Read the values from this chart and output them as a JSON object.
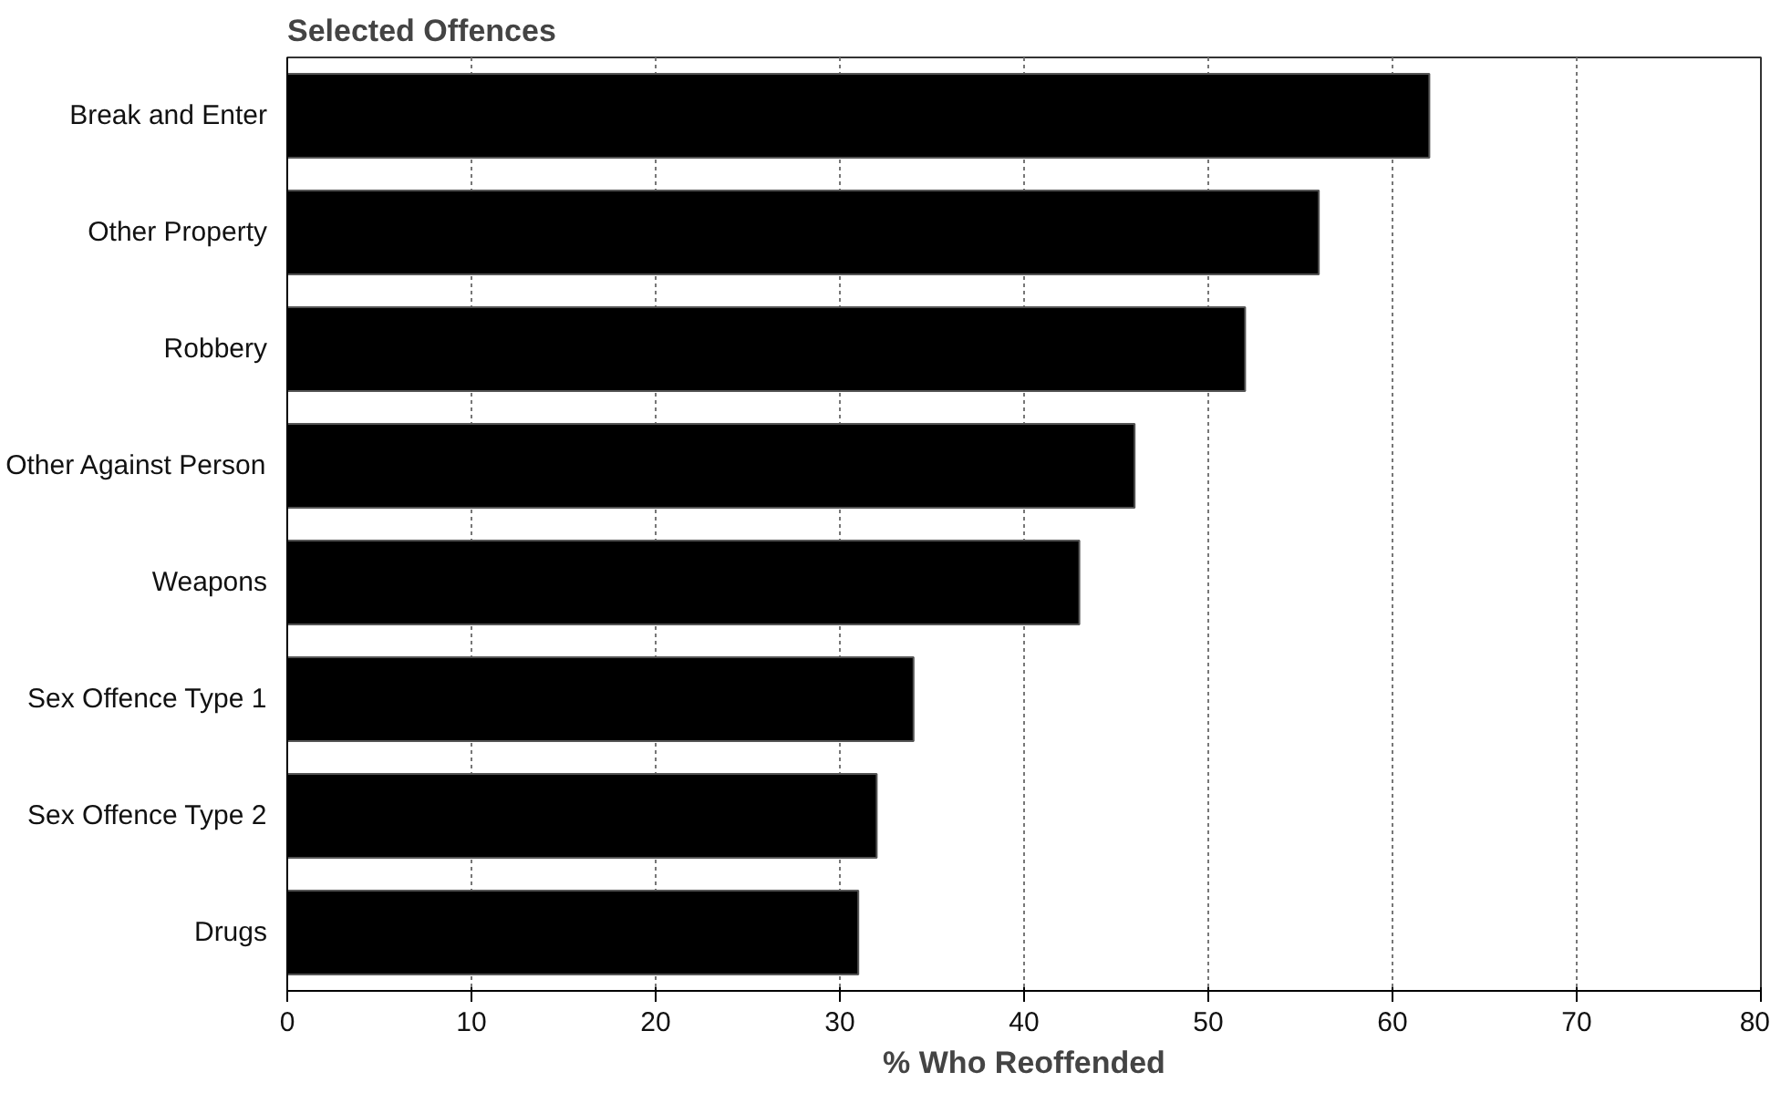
{
  "chart_data": {
    "type": "bar",
    "orientation": "horizontal",
    "title": "Selected Offences",
    "xlabel": "% Who Reoffended",
    "categories": [
      "Break and Enter",
      "Other Property",
      "Robbery",
      "Other Against Person",
      "Weapons",
      "Sex Offence Type 1",
      "Sex Offence Type 2",
      "Drugs"
    ],
    "values": [
      62,
      56,
      52,
      46,
      43,
      34,
      32,
      31
    ],
    "color": "#000000",
    "xlim": [
      0,
      80
    ],
    "xticks": [
      0,
      10,
      20,
      30,
      40,
      50,
      60,
      70,
      80
    ],
    "grid": "x"
  }
}
